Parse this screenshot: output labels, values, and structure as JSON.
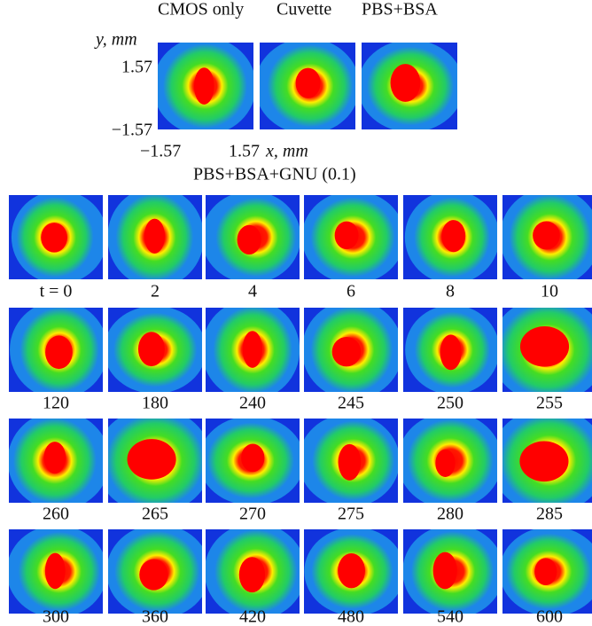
{
  "header": {
    "columns": [
      "CMOS only",
      "Cuvette",
      "PBS+BSA"
    ],
    "y_label": "y, mm",
    "y_ticks": [
      "1.57",
      "−1.57"
    ],
    "x_ticks": [
      "−1.57",
      "1.57"
    ],
    "x_label": "x, mm",
    "section_title": "PBS+BSA+GNU (0.1)"
  },
  "panels": {
    "rows": [
      [
        "t = 0",
        "2",
        "4",
        "6",
        "8",
        "10"
      ],
      [
        "120",
        "180",
        "240",
        "245",
        "250",
        "255"
      ],
      [
        "260",
        "265",
        "270",
        "275",
        "280",
        "285"
      ],
      [
        "300",
        "360",
        "420",
        "480",
        "540",
        "600"
      ]
    ]
  }
}
